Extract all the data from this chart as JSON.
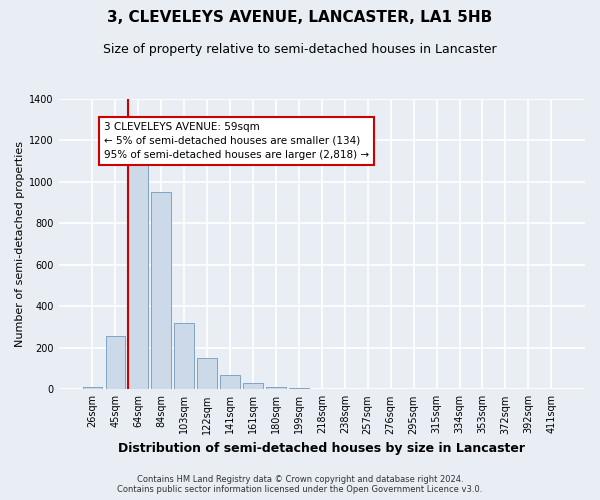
{
  "title": "3, CLEVELEYS AVENUE, LANCASTER, LA1 5HB",
  "subtitle": "Size of property relative to semi-detached houses in Lancaster",
  "xlabel": "Distribution of semi-detached houses by size in Lancaster",
  "ylabel": "Number of semi-detached properties",
  "footnote1": "Contains HM Land Registry data © Crown copyright and database right 2024.",
  "footnote2": "Contains public sector information licensed under the Open Government Licence v3.0.",
  "categories": [
    "26sqm",
    "45sqm",
    "64sqm",
    "84sqm",
    "103sqm",
    "122sqm",
    "141sqm",
    "161sqm",
    "180sqm",
    "199sqm",
    "218sqm",
    "238sqm",
    "257sqm",
    "276sqm",
    "295sqm",
    "315sqm",
    "334sqm",
    "353sqm",
    "372sqm",
    "392sqm",
    "411sqm"
  ],
  "values": [
    10,
    255,
    1160,
    950,
    320,
    150,
    70,
    30,
    12,
    5,
    2,
    0,
    1,
    0,
    1,
    0,
    0,
    0,
    0,
    0,
    0
  ],
  "bar_color": "#ccd9e8",
  "bar_edge_color": "#7399bb",
  "highlight_line_index": 2,
  "highlight_line_color": "#cc0000",
  "annotation_text": "3 CLEVELEYS AVENUE: 59sqm\n← 5% of semi-detached houses are smaller (134)\n95% of semi-detached houses are larger (2,818) →",
  "annotation_box_color": "#ffffff",
  "annotation_box_edge_color": "#cc0000",
  "ylim": [
    0,
    1400
  ],
  "yticks": [
    0,
    200,
    400,
    600,
    800,
    1000,
    1200,
    1400
  ],
  "background_color": "#e8eef4",
  "plot_background_color": "#e8eef4",
  "grid_color": "#ffffff",
  "title_fontsize": 11,
  "subtitle_fontsize": 9,
  "xlabel_fontsize": 9,
  "ylabel_fontsize": 8,
  "tick_fontsize": 7,
  "annotation_fontsize": 7.5,
  "footnote_fontsize": 6
}
